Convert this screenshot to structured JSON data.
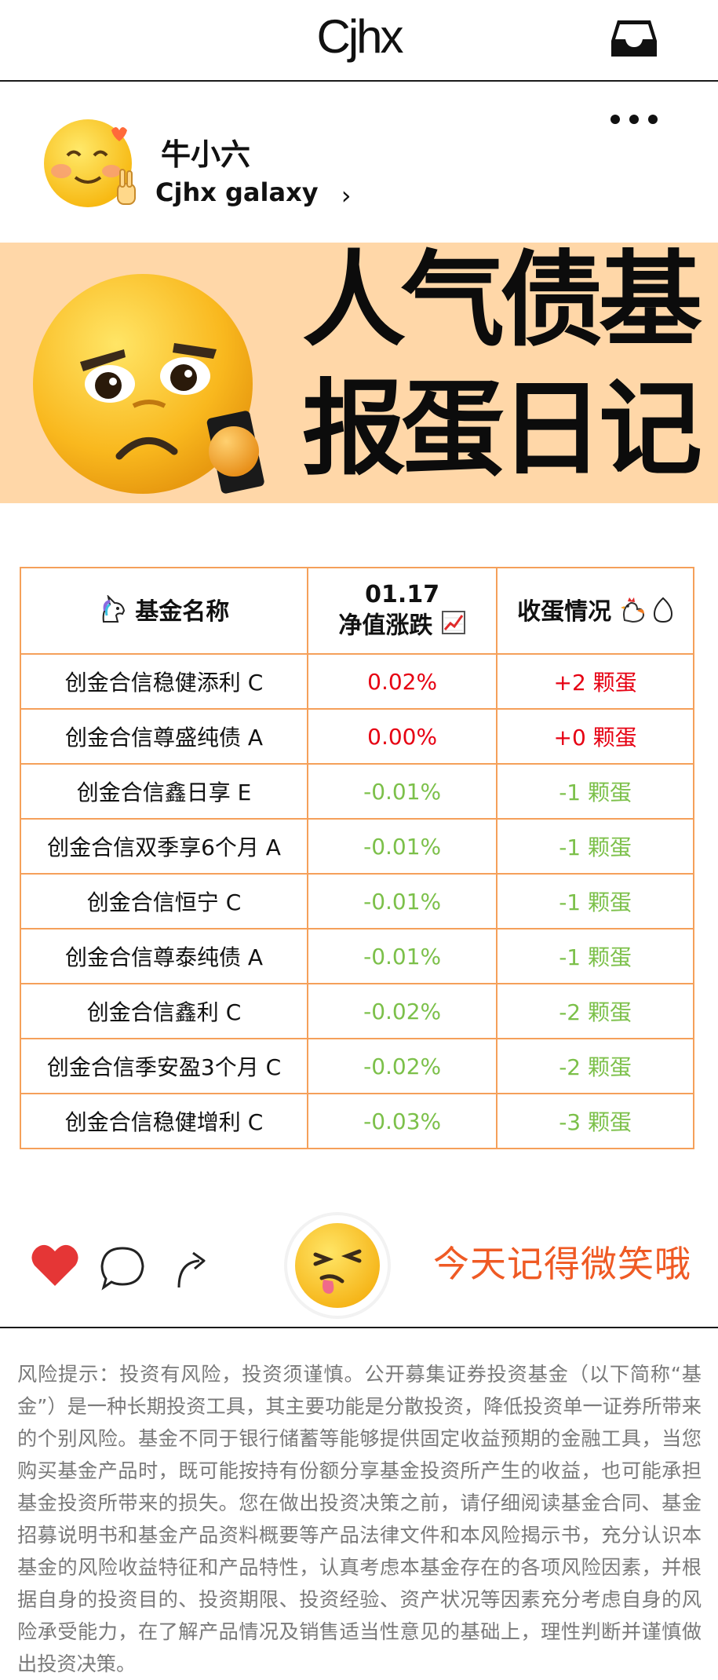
{
  "header": {
    "brand": "Cjhx",
    "inbox_icon": "inbox-icon"
  },
  "profile": {
    "name": "牛小六",
    "account": "Cjhx galaxy",
    "chevron_icon": "chevron-right-icon",
    "more_icon": "more-horizontal-icon"
  },
  "banner": {
    "line1": "人气债基",
    "line2": "报蛋日记"
  },
  "table": {
    "headers": {
      "name": "基金名称",
      "date": "01.17",
      "change": "净值涨跌",
      "eggs": "收蛋情况"
    },
    "header_icons": [
      "unicorn-icon",
      "chart-up-icon",
      "rooster-icon",
      "egg-icon"
    ],
    "rows": [
      {
        "name": "创金合信稳健添利 C",
        "change": "0.02%",
        "eggs": "+2 颗蛋",
        "trend": "up"
      },
      {
        "name": "创金合信尊盛纯债 A",
        "change": "0.00%",
        "eggs": "+0 颗蛋",
        "trend": "up"
      },
      {
        "name": "创金合信鑫日享 E",
        "change": "-0.01%",
        "eggs": "-1 颗蛋",
        "trend": "down"
      },
      {
        "name": "创金合信双季享6个月 A",
        "change": "-0.01%",
        "eggs": "-1 颗蛋",
        "trend": "down"
      },
      {
        "name": "创金合信恒宁 C",
        "change": "-0.01%",
        "eggs": "-1 颗蛋",
        "trend": "down"
      },
      {
        "name": "创金合信尊泰纯债 A",
        "change": "-0.01%",
        "eggs": "-1 颗蛋",
        "trend": "down"
      },
      {
        "name": "创金合信鑫利 C",
        "change": "-0.02%",
        "eggs": "-2 颗蛋",
        "trend": "down"
      },
      {
        "name": "创金合信季安盈3个月 C",
        "change": "-0.02%",
        "eggs": "-2 颗蛋",
        "trend": "down"
      },
      {
        "name": "创金合信稳健增利 C",
        "change": "-0.03%",
        "eggs": "-3 颗蛋",
        "trend": "down"
      }
    ]
  },
  "social": {
    "tagline": "今天记得微笑哦"
  },
  "disclaimer": "风险提示：投资有风险，投资须谨慎。公开募集证券投资基金（以下简称“基金”）是一种长期投资工具，其主要功能是分散投资，降低投资单一证券所带来的个别风险。基金不同于银行储蓄等能够提供固定收益预期的金融工具，当您购买基金产品时，既可能按持有份额分享基金投资所产生的收益，也可能承担基金投资所带来的损失。您在做出投资决策之前，请仔细阅读基金合同、基金招募说明书和基金产品资料概要等产品法律文件和本风险揭示书，充分认识本基金的风险收益特征和产品特性，认真考虑本基金存在的各项风险因素，并根据自身的投资目的、投资期限、投资经验、资产状况等因素充分考虑自身的风险承受能力，在了解产品情况及销售适当性意见的基础上，理性判断并谨慎做出投资决策。"
}
